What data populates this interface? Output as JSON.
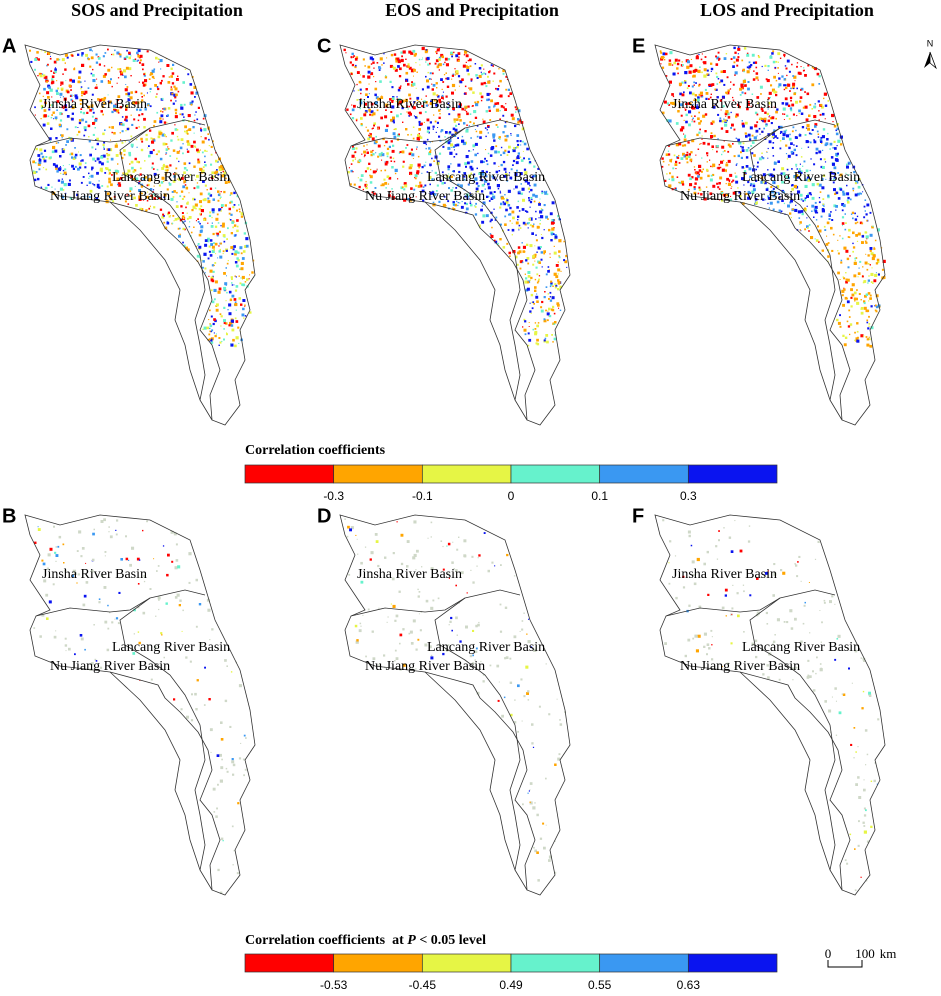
{
  "panels": [
    {
      "letter": "A",
      "title": "SOS and Precipitation",
      "labels": [
        "Jinsha River Basin",
        "Lancang River Basin",
        "Nu Jiang River Basin"
      ]
    },
    {
      "letter": "C",
      "title": "EOS and Precipitation",
      "labels": [
        "Jinsha River Basin",
        "Lancang River Basin",
        "Nu Jiang River Basin"
      ]
    },
    {
      "letter": "E",
      "title": "LOS and Precipitation",
      "labels": [
        "Jinsha River Basin",
        "Lancang River Basin",
        "Nu Jiang River Basin"
      ]
    },
    {
      "letter": "B",
      "labels": [
        "Jinsha River Basin",
        "Lancang River Basin",
        "Nu Jiang River Basin"
      ]
    },
    {
      "letter": "D",
      "labels": [
        "Jinsha River Basin",
        "Lancang River Basin",
        "Nu Jiang River Basin"
      ]
    },
    {
      "letter": "F",
      "labels": [
        "Jinsha River Basin",
        "Lancang River Basin",
        "Nu Jiang River Basin"
      ]
    }
  ],
  "legend_top": {
    "title": "Correlation coefficients",
    "colors": [
      "#ff0000",
      "#ffa500",
      "#e6f545",
      "#66f2cc",
      "#3a98f2",
      "#0a14f0"
    ],
    "ticks": [
      -0.3,
      -0.1,
      0,
      0.1,
      0.3
    ]
  },
  "legend_bottom": {
    "title_prefix": "Correlation coefficients  at ",
    "title_var": "P",
    "title_suffix": " < 0.05 level",
    "colors": [
      "#ff0000",
      "#ffa500",
      "#e6f545",
      "#66f2cc",
      "#3a98f2",
      "#0a14f0"
    ],
    "ticks": [
      -0.53,
      -0.45,
      0.49,
      0.55,
      0.63
    ]
  },
  "north": "N",
  "scale_bar": {
    "start": "0",
    "end": "100",
    "unit": "km"
  }
}
